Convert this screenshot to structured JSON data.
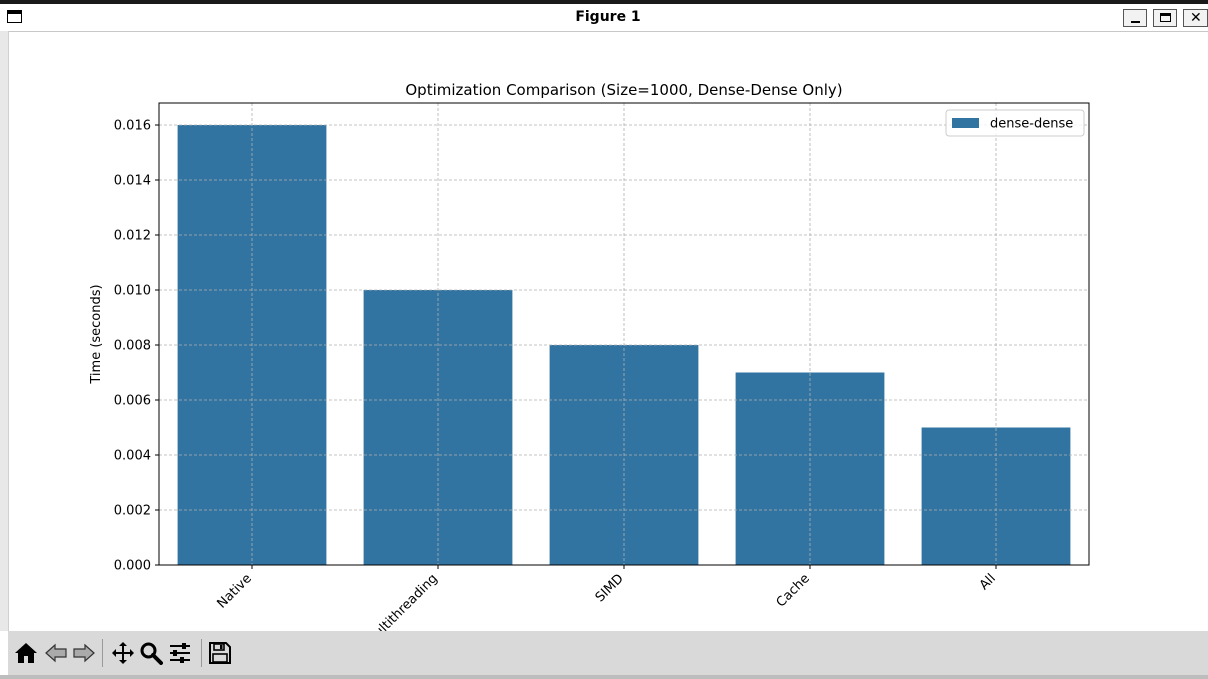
{
  "window": {
    "title": "Figure 1"
  },
  "toolbar": {
    "buttons": [
      {
        "name": "home-icon"
      },
      {
        "name": "back-icon"
      },
      {
        "name": "forward-icon"
      },
      {
        "name": "pan-icon"
      },
      {
        "name": "zoom-icon"
      },
      {
        "name": "configure-subplots-icon"
      },
      {
        "name": "save-icon"
      }
    ]
  },
  "chart_data": {
    "type": "bar",
    "title": "Optimization Comparison (Size=1000, Dense-Dense Only)",
    "xlabel": "",
    "ylabel": "Time (seconds)",
    "categories": [
      "Native",
      "Multithreading",
      "SIMD",
      "Cache",
      "All"
    ],
    "series": [
      {
        "name": "dense-dense",
        "values": [
          0.016,
          0.01,
          0.008,
          0.007,
          0.005
        ],
        "color": "#3274a1"
      }
    ],
    "ylim": [
      0,
      0.0168
    ],
    "yticks": [
      "0.000",
      "0.002",
      "0.004",
      "0.006",
      "0.008",
      "0.010",
      "0.012",
      "0.014",
      "0.016"
    ],
    "grid": true,
    "legend": "top-right"
  }
}
